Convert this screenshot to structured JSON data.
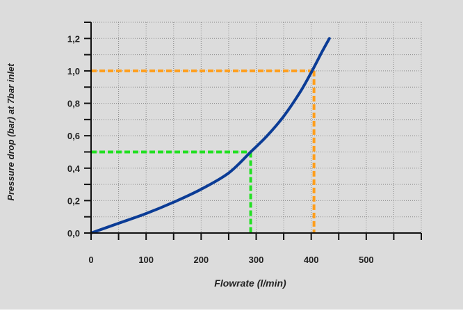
{
  "chart_data": {
    "type": "line",
    "title": "",
    "xlabel": "Flowrate (l/min)",
    "ylabel": "Pressure drop (bar)   at 7bar inlet",
    "xlim": [
      0,
      600
    ],
    "ylim": [
      0,
      1.3
    ],
    "grid": true,
    "x_ticks": [
      "0",
      "100",
      "200",
      "300",
      "400",
      "500"
    ],
    "y_ticks": [
      "0,0",
      "0,2",
      "0,4",
      "0,6",
      "0,8",
      "1,0",
      "1,2"
    ],
    "colors": {
      "background": "#dcdcdc",
      "curve": "#0b3c96",
      "green_guide": "#22e022",
      "orange_guide": "#ff9e1b",
      "grid": "#888888"
    },
    "series": [
      {
        "x": [
          0,
          50,
          100,
          150,
          200,
          250,
          290,
          320,
          350,
          380,
          400,
          420,
          433
        ],
        "y": [
          0,
          0.06,
          0.12,
          0.19,
          0.27,
          0.37,
          0.5,
          0.6,
          0.72,
          0.87,
          0.99,
          1.12,
          1.2
        ]
      }
    ],
    "reference_lines": [
      {
        "x": 290,
        "y": 0.5,
        "color": "#22e022"
      },
      {
        "x": 405,
        "y": 1.0,
        "color": "#ff9e1b"
      }
    ]
  }
}
